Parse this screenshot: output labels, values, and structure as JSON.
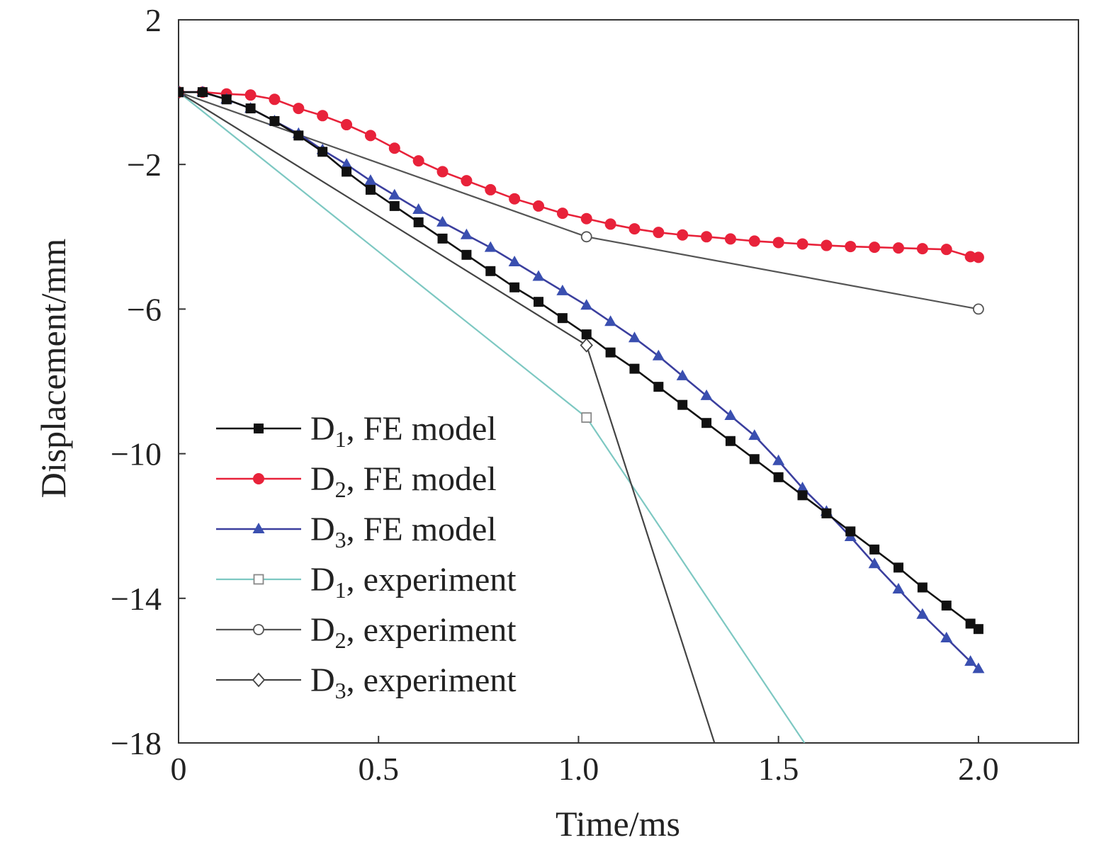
{
  "chart_data": {
    "type": "line",
    "title": "",
    "xlabel": "Time/ms",
    "ylabel": "Displacement/mm",
    "xlim": [
      0,
      2.25
    ],
    "ylim": [
      -18,
      2
    ],
    "xticks": [
      0,
      0.5,
      1.0,
      1.5,
      2.0
    ],
    "xtick_labels": [
      "0",
      "0.5",
      "1.0",
      "1.5",
      "2.0"
    ],
    "yticks": [
      2,
      -2,
      -6,
      -10,
      -14,
      -18
    ],
    "ytick_labels": [
      "2",
      "−2",
      "−6",
      "−10",
      "−14",
      "−18"
    ],
    "grid": false,
    "legend_position": "lower-left",
    "series": [
      {
        "name": "D1, FE model",
        "legend_main": "D",
        "legend_sub": "1",
        "legend_rest": ", FE model",
        "color": "#111111",
        "marker": "square-filled",
        "marker_color": "#111111",
        "x": [
          0,
          0.06,
          0.12,
          0.18,
          0.24,
          0.3,
          0.36,
          0.42,
          0.48,
          0.54,
          0.6,
          0.66,
          0.72,
          0.78,
          0.84,
          0.9,
          0.96,
          1.02,
          1.08,
          1.14,
          1.2,
          1.26,
          1.32,
          1.38,
          1.44,
          1.5,
          1.56,
          1.62,
          1.68,
          1.74,
          1.8,
          1.86,
          1.92,
          1.98,
          2.0
        ],
        "y": [
          0,
          0,
          -0.2,
          -0.45,
          -0.8,
          -1.2,
          -1.65,
          -2.2,
          -2.7,
          -3.15,
          -3.6,
          -4.05,
          -4.5,
          -4.95,
          -5.4,
          -5.8,
          -6.25,
          -6.7,
          -7.2,
          -7.65,
          -8.15,
          -8.65,
          -9.15,
          -9.65,
          -10.15,
          -10.65,
          -11.15,
          -11.65,
          -12.15,
          -12.65,
          -13.15,
          -13.7,
          -14.2,
          -14.7,
          -14.85
        ]
      },
      {
        "name": "D2, FE model",
        "legend_main": "D",
        "legend_sub": "2",
        "legend_rest": ", FE model",
        "color": "#e8223a",
        "marker": "circle-filled",
        "marker_color": "#e8223a",
        "x": [
          0,
          0.06,
          0.12,
          0.18,
          0.24,
          0.3,
          0.36,
          0.42,
          0.48,
          0.54,
          0.6,
          0.66,
          0.72,
          0.78,
          0.84,
          0.9,
          0.96,
          1.02,
          1.08,
          1.14,
          1.2,
          1.26,
          1.32,
          1.38,
          1.44,
          1.5,
          1.56,
          1.62,
          1.68,
          1.74,
          1.8,
          1.86,
          1.92,
          1.98,
          2.0
        ],
        "y": [
          0,
          0,
          -0.05,
          -0.08,
          -0.2,
          -0.45,
          -0.65,
          -0.9,
          -1.2,
          -1.55,
          -1.9,
          -2.2,
          -2.45,
          -2.7,
          -2.95,
          -3.15,
          -3.35,
          -3.5,
          -3.65,
          -3.78,
          -3.88,
          -3.95,
          -4.0,
          -4.06,
          -4.12,
          -4.16,
          -4.2,
          -4.24,
          -4.27,
          -4.29,
          -4.31,
          -4.33,
          -4.35,
          -4.55,
          -4.57
        ]
      },
      {
        "name": "D3, FE model",
        "legend_main": "D",
        "legend_sub": "3",
        "legend_rest": ", FE model",
        "color": "#3b3f9e",
        "marker": "triangle-filled",
        "marker_color": "#3a4fb0",
        "x": [
          0,
          0.06,
          0.12,
          0.18,
          0.24,
          0.3,
          0.36,
          0.42,
          0.48,
          0.54,
          0.6,
          0.66,
          0.72,
          0.78,
          0.84,
          0.9,
          0.96,
          1.02,
          1.08,
          1.14,
          1.2,
          1.26,
          1.32,
          1.38,
          1.44,
          1.5,
          1.56,
          1.62,
          1.68,
          1.74,
          1.8,
          1.86,
          1.92,
          1.98,
          2.0
        ],
        "y": [
          0,
          0,
          -0.2,
          -0.45,
          -0.8,
          -1.15,
          -1.6,
          -2.0,
          -2.45,
          -2.85,
          -3.25,
          -3.6,
          -3.95,
          -4.3,
          -4.7,
          -5.1,
          -5.5,
          -5.9,
          -6.35,
          -6.8,
          -7.3,
          -7.85,
          -8.4,
          -8.95,
          -9.5,
          -10.2,
          -10.95,
          -11.6,
          -12.3,
          -13.05,
          -13.75,
          -14.45,
          -15.1,
          -15.75,
          -15.95
        ]
      },
      {
        "name": "D1, experiment",
        "legend_main": "D",
        "legend_sub": "1",
        "legend_rest": ", experiment",
        "color": "#7dc8c2",
        "marker": "square-open",
        "marker_color": "#888888",
        "x": [
          0,
          1.02,
          1.565
        ],
        "y": [
          0,
          -9.0,
          -18.0
        ]
      },
      {
        "name": "D2, experiment",
        "legend_main": "D",
        "legend_sub": "2",
        "legend_rest": ", experiment",
        "color": "#555555",
        "marker": "circle-open",
        "marker_color": "#555555",
        "x": [
          0,
          1.02,
          2.0
        ],
        "y": [
          0,
          -4.0,
          -6.0
        ]
      },
      {
        "name": "D3, experiment",
        "legend_main": "D",
        "legend_sub": "3",
        "legend_rest": ", experiment",
        "color": "#444444",
        "marker": "diamond-open",
        "marker_color": "#444444",
        "x": [
          0,
          1.02,
          1.34
        ],
        "y": [
          0,
          -7.0,
          -18.0
        ]
      }
    ]
  }
}
